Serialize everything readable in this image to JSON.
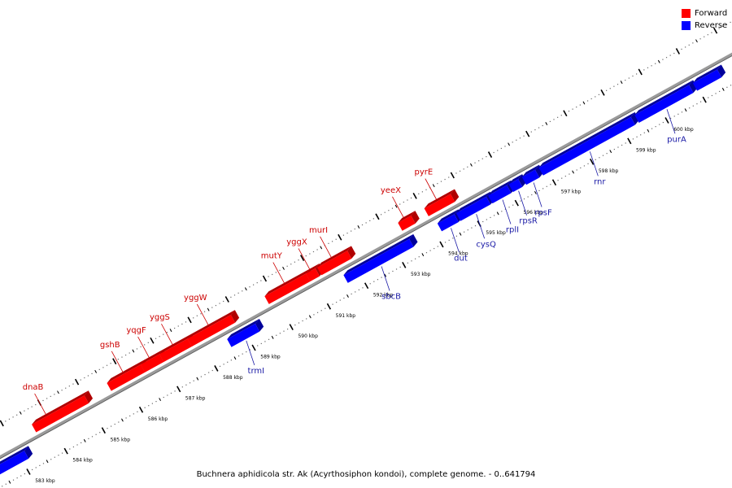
{
  "legend": {
    "items": [
      {
        "label": "Forward",
        "color": "#ff0000"
      },
      {
        "label": "Reverse",
        "color": "#0000ff"
      }
    ]
  },
  "caption": "Buchnera aphidicola str. Ak (Acyrthosiphon kondoi), complete genome. - 0..641794",
  "colors": {
    "forward": "#ff0000",
    "forward_dark": "#b00000",
    "reverse": "#0000ff",
    "reverse_dark": "#00009a",
    "forward_label": "#cc0000",
    "reverse_label": "#1a1aa6"
  },
  "scale": {
    "tick_unit": "kbp",
    "ticks": [
      583,
      584,
      585,
      586,
      587,
      588,
      589,
      590,
      591,
      592,
      593,
      594,
      595,
      596,
      597,
      598,
      599,
      600
    ]
  },
  "genes": [
    {
      "name": "dnaB",
      "strand": "forward",
      "start_kbp": 583.6,
      "end_kbp": 585.0,
      "label_start": true
    },
    {
      "name": "gshB",
      "strand": "forward",
      "start_kbp": 585.6,
      "end_kbp": 586.5
    },
    {
      "name": "yqgF",
      "strand": "forward",
      "start_kbp": 586.5,
      "end_kbp": 587.0
    },
    {
      "name": "yggS",
      "strand": "forward",
      "start_kbp": 587.0,
      "end_kbp": 587.75
    },
    {
      "name": "yggW",
      "strand": "forward",
      "start_kbp": 587.75,
      "end_kbp": 588.9
    },
    {
      "name": "mutY",
      "strand": "forward",
      "start_kbp": 589.8,
      "end_kbp": 590.9
    },
    {
      "name": "yggX",
      "strand": "forward",
      "start_kbp": 590.9,
      "end_kbp": 591.15
    },
    {
      "name": "murI",
      "strand": "forward",
      "start_kbp": 591.2,
      "end_kbp": 592.0
    },
    {
      "name": "yeeX",
      "strand": "forward",
      "start_kbp": 593.35,
      "end_kbp": 593.7
    },
    {
      "name": "pyrE",
      "strand": "forward",
      "start_kbp": 594.05,
      "end_kbp": 594.75
    },
    {
      "name": "trmI",
      "strand": "reverse",
      "start_kbp": 588.55,
      "end_kbp": 589.3
    },
    {
      "name": "sbcB",
      "strand": "reverse",
      "start_kbp": 591.65,
      "end_kbp": 593.4
    },
    {
      "name": "dut",
      "strand": "reverse",
      "start_kbp": 594.15,
      "end_kbp": 594.6
    },
    {
      "name": "cysQ",
      "strand": "reverse",
      "start_kbp": 594.65,
      "end_kbp": 595.45
    },
    {
      "name": "rplI",
      "strand": "reverse",
      "start_kbp": 595.5,
      "end_kbp": 596.0
    },
    {
      "name": "rpsR",
      "strand": "reverse",
      "start_kbp": 596.05,
      "end_kbp": 596.3
    },
    {
      "name": "rpsF",
      "strand": "reverse",
      "start_kbp": 596.4,
      "end_kbp": 596.75
    },
    {
      "name": "rnr",
      "strand": "reverse",
      "start_kbp": 596.85,
      "end_kbp": 599.3
    },
    {
      "name": "purA",
      "strand": "reverse",
      "start_kbp": 599.4,
      "end_kbp": 600.85
    },
    {
      "name": "",
      "strand": "reverse",
      "start_kbp": 600.95,
      "end_kbp": 601.6
    },
    {
      "name": "",
      "strand": "reverse",
      "start_kbp": 582.3,
      "end_kbp": 583.15
    }
  ]
}
